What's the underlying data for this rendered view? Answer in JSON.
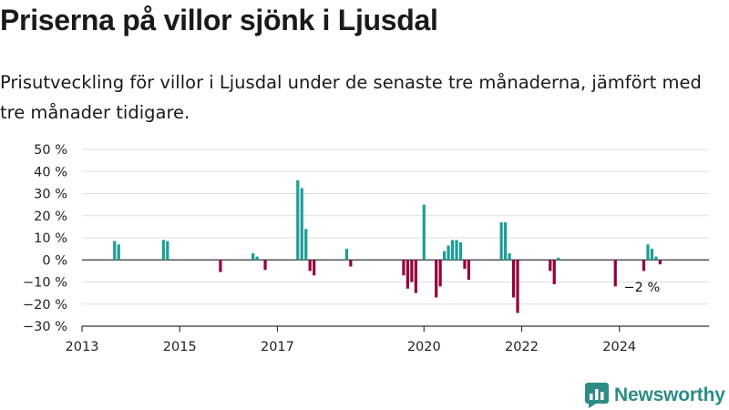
{
  "header": {
    "title": "Priserna på villor sjönk i Ljusdal",
    "subtitle": "Prisutveckling för villor i Ljusdal under de senaste tre månaderna, jämfört med tre månader tidigare."
  },
  "brand": {
    "name": "Newsworthy",
    "icon": "newsworthy-logo-icon",
    "color": "#2c8c86"
  },
  "chart_data": {
    "type": "bar",
    "title": "",
    "xlabel": "",
    "ylabel": "",
    "ylim": [
      -30,
      50
    ],
    "xlim": [
      "2013-01",
      "2025-11"
    ],
    "y_ticks": [
      -30,
      -20,
      -10,
      0,
      10,
      20,
      30,
      40,
      50
    ],
    "y_tick_labels": [
      "−30 %",
      "−20 %",
      "−10 %",
      "0 %",
      "10 %",
      "20 %",
      "30 %",
      "40 %",
      "50 %"
    ],
    "x_ticks": [
      "2013-01",
      "2015-01",
      "2017-01",
      "2020-01",
      "2022-01",
      "2024-01"
    ],
    "x_tick_labels": [
      "2013",
      "2015",
      "2017",
      "2020",
      "2022",
      "2024"
    ],
    "grid": true,
    "legend": "none",
    "colors": {
      "positive": "#1d9e97",
      "negative": "#94003b"
    },
    "series": [
      {
        "x": [
          "2013-09",
          "2013-10",
          "2014-09",
          "2014-10",
          "2015-11",
          "2016-07",
          "2016-08",
          "2016-10",
          "2017-06",
          "2017-07",
          "2017-08",
          "2017-09",
          "2017-10",
          "2018-06",
          "2018-07",
          "2019-08",
          "2019-09",
          "2019-10",
          "2019-11",
          "2020-01",
          "2020-04",
          "2020-05",
          "2020-06",
          "2020-07",
          "2020-08",
          "2020-09",
          "2020-10",
          "2020-11",
          "2020-12",
          "2021-08",
          "2021-09",
          "2021-10",
          "2021-11",
          "2021-12",
          "2022-08",
          "2022-09",
          "2022-10",
          "2023-12",
          "2024-07",
          "2024-08",
          "2024-09",
          "2024-10",
          "2024-11"
        ],
        "values": [
          8.5,
          7,
          9,
          8.5,
          -5.5,
          3,
          1.5,
          -4.5,
          36,
          32.5,
          14,
          -5,
          -7,
          5,
          -3,
          -7,
          -13,
          -10,
          -15,
          25,
          -17,
          -12,
          4,
          6.5,
          9,
          9,
          8,
          -4,
          -9,
          17,
          17,
          3,
          -17,
          -24,
          -5,
          -11,
          1,
          -12,
          -5,
          7,
          5,
          1.5,
          -2
        ]
      }
    ],
    "annotations": [
      {
        "x": "2024-11",
        "y": -2,
        "text": "−2 %"
      }
    ]
  }
}
